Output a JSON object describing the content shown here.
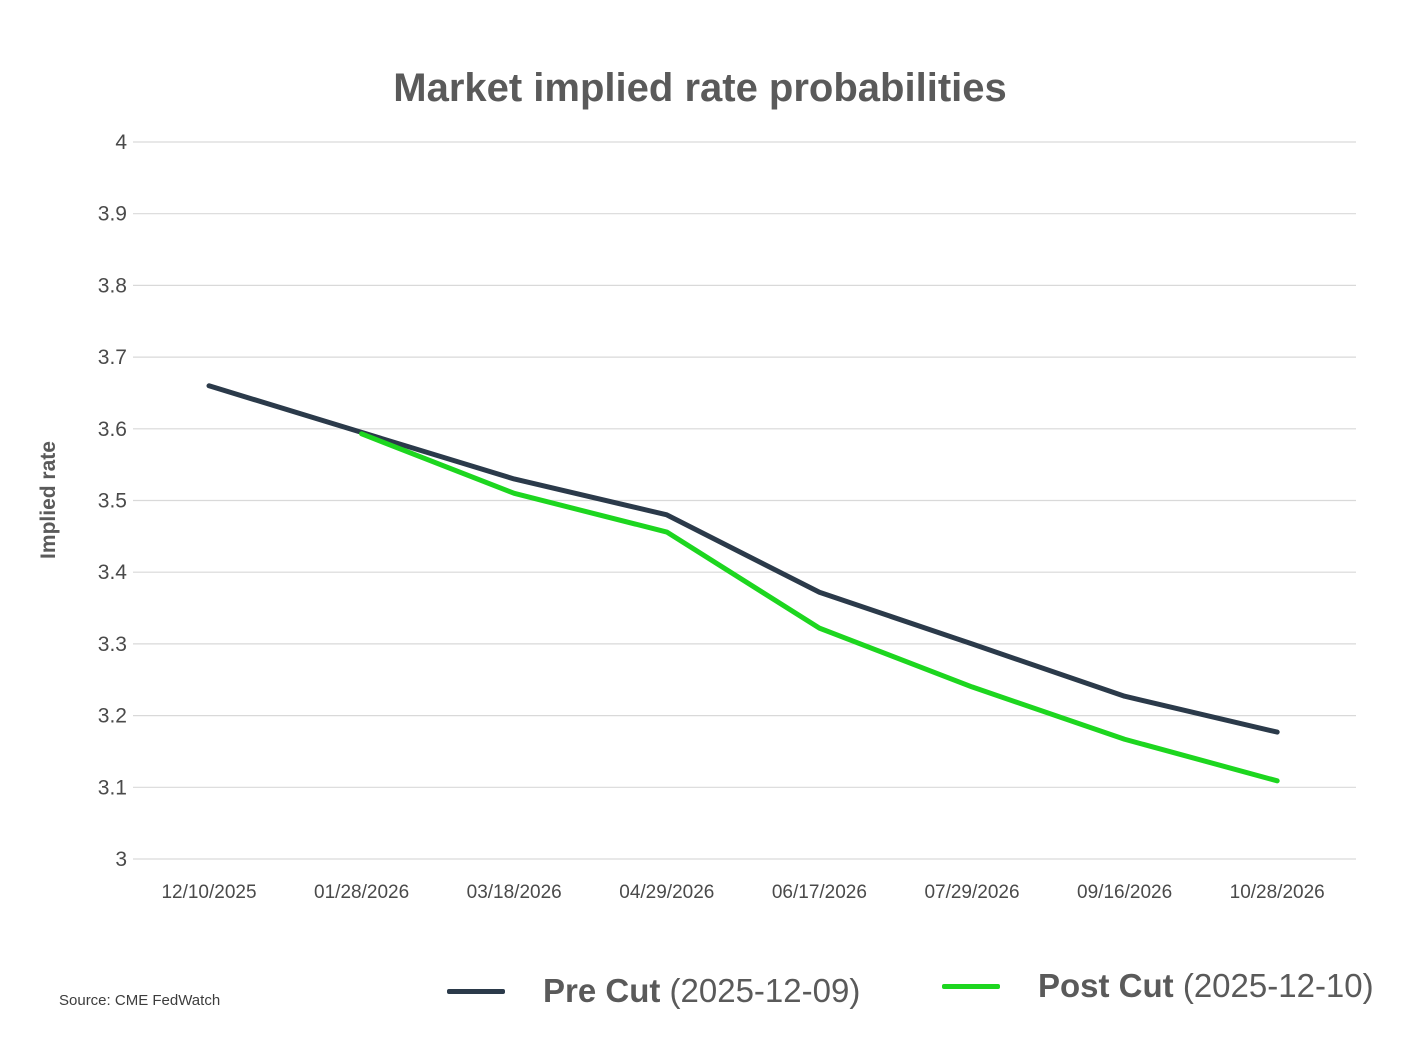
{
  "chart_data": {
    "type": "line",
    "title": "Market implied rate probabilities",
    "xlabel": "",
    "ylabel": "Implied rate",
    "categories": [
      "12/10/2025",
      "01/28/2026",
      "03/18/2026",
      "04/29/2026",
      "06/17/2026",
      "07/29/2026",
      "09/16/2026",
      "10/28/2026"
    ],
    "ylim": [
      3,
      4
    ],
    "yticks": [
      "3",
      "3.1",
      "3.2",
      "3.3",
      "3.4",
      "3.5",
      "3.6",
      "3.7",
      "3.8",
      "3.9",
      "4"
    ],
    "grid": true,
    "legend_position": "bottom",
    "series": [
      {
        "name": "Pre Cut",
        "legend_suffix": "(2025-12-09)",
        "color": "#2b3a4a",
        "values": [
          3.66,
          3.595,
          3.53,
          3.48,
          3.372,
          3.3,
          3.227,
          3.177
        ]
      },
      {
        "name": "Post Cut",
        "legend_suffix": "(2025-12-10)",
        "color": "#1dd61f",
        "values": [
          null,
          3.593,
          3.51,
          3.456,
          3.322,
          3.24,
          3.167,
          3.109
        ]
      }
    ]
  },
  "source_note": "Source: CME FedWatch"
}
